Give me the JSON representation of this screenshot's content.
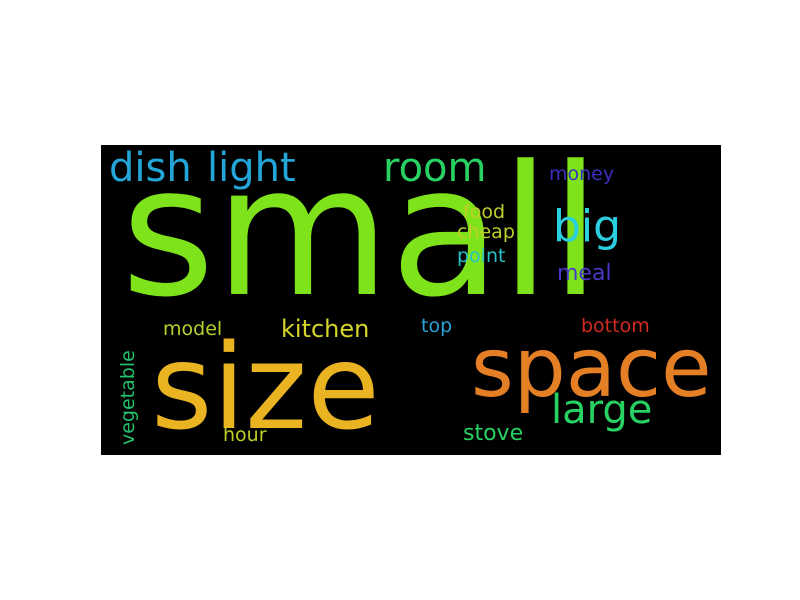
{
  "words": [
    {
      "text": "small",
      "color": "#7fe31b"
    },
    {
      "text": "size",
      "color": "#e9b322"
    },
    {
      "text": "space",
      "color": "#e57f25"
    },
    {
      "text": "dish",
      "color": "#23a6d7"
    },
    {
      "text": "light",
      "color": "#23a6d7"
    },
    {
      "text": "room",
      "color": "#27d162"
    },
    {
      "text": "big",
      "color": "#2ad0df"
    },
    {
      "text": "large",
      "color": "#27d162"
    },
    {
      "text": "money",
      "color": "#3b2fc0"
    },
    {
      "text": "food",
      "color": "#bfcf2a"
    },
    {
      "text": "cheap",
      "color": "#bfcf2a"
    },
    {
      "text": "point",
      "color": "#27c3c9"
    },
    {
      "text": "meal",
      "color": "#4a38c6"
    },
    {
      "text": "model",
      "color": "#b9cf2d"
    },
    {
      "text": "kitchen",
      "color": "#d6d52a"
    },
    {
      "text": "top",
      "color": "#2aa2d7"
    },
    {
      "text": "bottom",
      "color": "#d12a24"
    },
    {
      "text": "vegetable",
      "color": "#22c16d"
    },
    {
      "text": "hour",
      "color": "#bfcf2a"
    },
    {
      "text": "stove",
      "color": "#27d162"
    }
  ]
}
